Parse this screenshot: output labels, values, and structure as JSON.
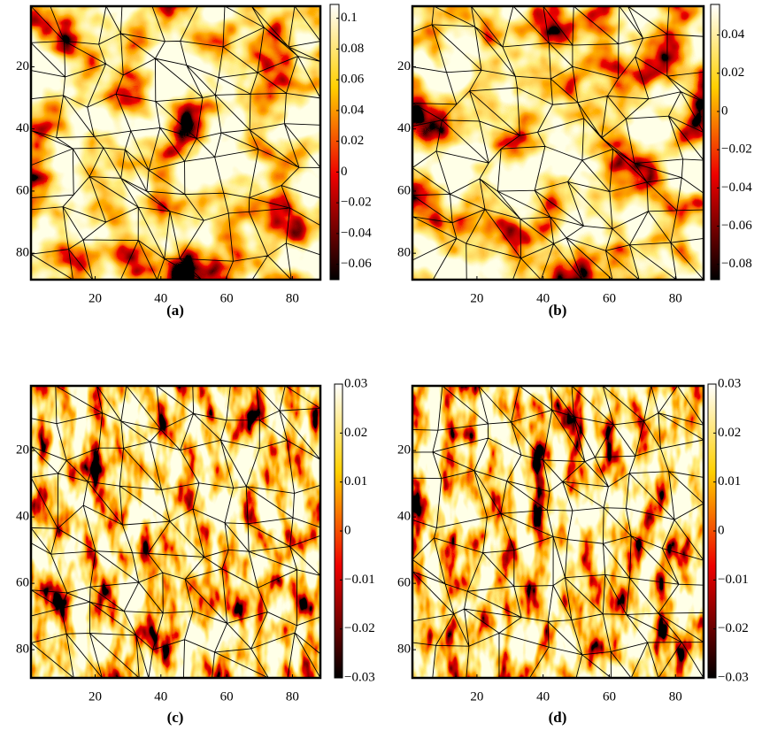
{
  "chart_data": [
    {
      "type": "heatmap",
      "label": "(a)",
      "xlim": [
        0.5,
        88.5
      ],
      "ylim": [
        0.5,
        88.5
      ],
      "yreverse": true,
      "xticks": [
        20,
        40,
        60,
        80
      ],
      "yticks": [
        20,
        40,
        60,
        80
      ],
      "colormap": "hot",
      "clim": [
        -0.07,
        0.109
      ],
      "cticks": [
        {
          "value": -0.06,
          "label": "−0.06"
        },
        {
          "value": -0.04,
          "label": "−0.04"
        },
        {
          "value": -0.02,
          "label": "−0.02"
        },
        0,
        0.02,
        0.04,
        0.06,
        0.08,
        0.1
      ]
    },
    {
      "type": "heatmap",
      "label": "(b)",
      "xlim": [
        0.5,
        88.5
      ],
      "ylim": [
        0.5,
        88.5
      ],
      "yreverse": true,
      "xticks": [
        20,
        40,
        60,
        80
      ],
      "yticks": [
        20,
        40,
        60,
        80
      ],
      "colormap": "hot",
      "clim": [
        -0.088,
        0.056
      ],
      "cticks": [
        {
          "value": -0.08,
          "label": "−0.08"
        },
        {
          "value": -0.06,
          "label": "−0.06"
        },
        {
          "value": -0.04,
          "label": "−0.04"
        },
        {
          "value": -0.02,
          "label": "−0.02"
        },
        0,
        0.02,
        0.04
      ]
    },
    {
      "type": "heatmap",
      "label": "(c)",
      "xlim": [
        0.5,
        88.5
      ],
      "ylim": [
        0.5,
        88.5
      ],
      "yreverse": true,
      "xticks": [
        20,
        40,
        60,
        80
      ],
      "yticks": [
        20,
        40,
        60,
        80
      ],
      "colormap": "hot",
      "clim": [
        -0.03,
        0.03
      ],
      "cticks": [
        {
          "value": -0.03,
          "label": "−0.03"
        },
        {
          "value": -0.02,
          "label": "−0.02"
        },
        {
          "value": -0.01,
          "label": "−0.01"
        },
        0,
        0.01,
        0.02,
        0.03
      ]
    },
    {
      "type": "heatmap",
      "label": "(d)",
      "xlim": [
        0.5,
        88.5
      ],
      "ylim": [
        0.5,
        88.5
      ],
      "yreverse": true,
      "xticks": [
        20,
        40,
        60,
        80
      ],
      "yticks": [
        20,
        40,
        60,
        80
      ],
      "colormap": "hot",
      "clim": [
        -0.03,
        0.03
      ],
      "cticks": [
        {
          "value": -0.03,
          "label": "−0.03"
        },
        {
          "value": -0.02,
          "label": "−0.02"
        },
        {
          "value": -0.01,
          "label": "−0.01"
        },
        0,
        0.01,
        0.02,
        0.03
      ]
    }
  ]
}
